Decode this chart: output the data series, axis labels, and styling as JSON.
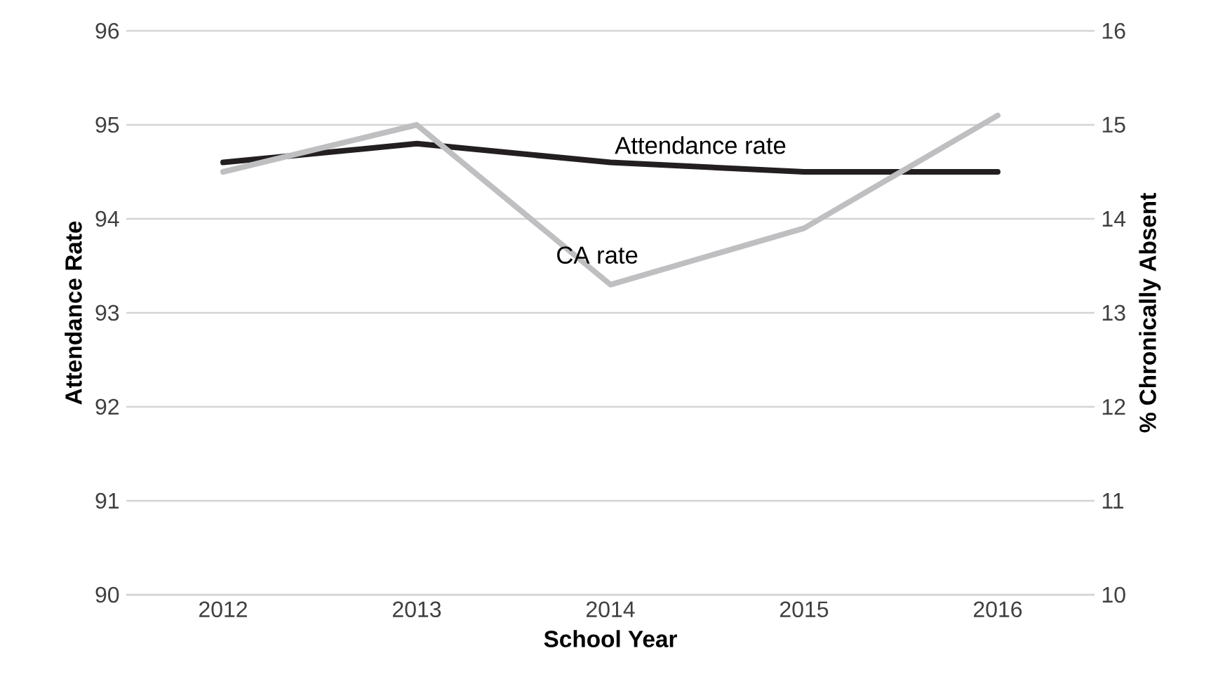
{
  "chart_data": {
    "type": "line",
    "xlabel": "School Year",
    "ylabel": "Attendance Rate",
    "y2label": "% Chronically Absent",
    "categories": [
      "2012",
      "2013",
      "2014",
      "2015",
      "2016"
    ],
    "series": [
      {
        "name": "Attendance rate",
        "color": "#231f20",
        "values": [
          94.6,
          94.8,
          94.6,
          94.5,
          94.5
        ]
      },
      {
        "name": "CA rate",
        "color": "#bfbfc1",
        "axis": "y2",
        "values": [
          14.5,
          15.0,
          13.3,
          13.9,
          15.1
        ]
      }
    ],
    "ylim": [
      90,
      96
    ],
    "yticks": [
      90,
      91,
      92,
      93,
      94,
      95,
      96
    ],
    "y2lim": [
      10,
      16
    ],
    "y2ticks": [
      10,
      11,
      12,
      13,
      14,
      15,
      16
    ],
    "grid": "y",
    "marker": "none",
    "line_style": "solid"
  }
}
